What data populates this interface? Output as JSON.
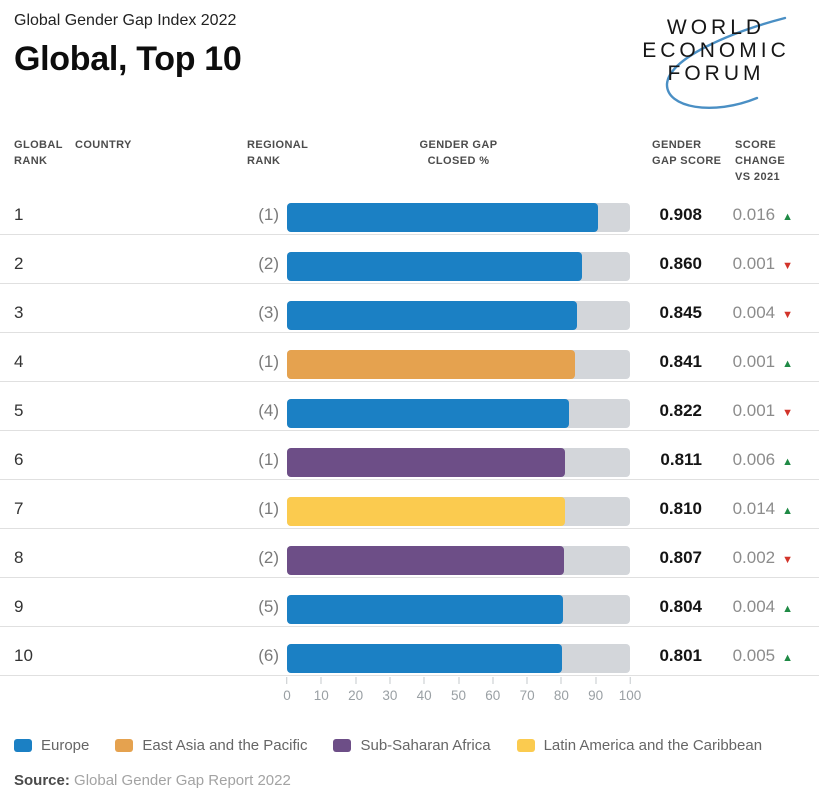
{
  "header": {
    "subtitle": "Global Gender Gap Index 2022",
    "title": "Global, Top 10",
    "logo_lines": [
      "WORLD",
      "ECONOMIC",
      "FORUM"
    ]
  },
  "columns": [
    [
      "GLOBAL",
      "RANK"
    ],
    [
      "COUNTRY"
    ],
    [
      "REGIONAL",
      "RANK"
    ],
    [
      "GENDER GAP",
      "CLOSED %"
    ],
    [
      "GENDER",
      "GAP SCORE"
    ],
    [
      "SCORE",
      "CHANGE",
      "VS 2021"
    ]
  ],
  "chart_data": {
    "type": "bar",
    "orientation": "horizontal",
    "title": "Global, Top 10",
    "xlabel": "GENDER GAP CLOSED %",
    "axis": {
      "min": 0,
      "max": 100,
      "ticks": [
        0,
        10,
        20,
        30,
        40,
        50,
        60,
        70,
        80,
        90,
        100
      ]
    },
    "rows": [
      {
        "global_rank": "1",
        "country": "",
        "regional_rank": "(1)",
        "region": "Europe",
        "gap_closed_pct": 90.8,
        "score": "0.908",
        "change": "0.016",
        "change_dir": "up"
      },
      {
        "global_rank": "2",
        "country": "",
        "regional_rank": "(2)",
        "region": "Europe",
        "gap_closed_pct": 86.0,
        "score": "0.860",
        "change": "0.001",
        "change_dir": "down"
      },
      {
        "global_rank": "3",
        "country": "",
        "regional_rank": "(3)",
        "region": "Europe",
        "gap_closed_pct": 84.5,
        "score": "0.845",
        "change": "0.004",
        "change_dir": "down"
      },
      {
        "global_rank": "4",
        "country": "",
        "regional_rank": "(1)",
        "region": "East Asia and the Pacific",
        "gap_closed_pct": 84.1,
        "score": "0.841",
        "change": "0.001",
        "change_dir": "up"
      },
      {
        "global_rank": "5",
        "country": "",
        "regional_rank": "(4)",
        "region": "Europe",
        "gap_closed_pct": 82.2,
        "score": "0.822",
        "change": "0.001",
        "change_dir": "down"
      },
      {
        "global_rank": "6",
        "country": "",
        "regional_rank": "(1)",
        "region": "Sub-Saharan Africa",
        "gap_closed_pct": 81.1,
        "score": "0.811",
        "change": "0.006",
        "change_dir": "up"
      },
      {
        "global_rank": "7",
        "country": "",
        "regional_rank": "(1)",
        "region": "Latin America and the Caribbean",
        "gap_closed_pct": 81.0,
        "score": "0.810",
        "change": "0.014",
        "change_dir": "up"
      },
      {
        "global_rank": "8",
        "country": "",
        "regional_rank": "(2)",
        "region": "Sub-Saharan Africa",
        "gap_closed_pct": 80.7,
        "score": "0.807",
        "change": "0.002",
        "change_dir": "down"
      },
      {
        "global_rank": "9",
        "country": "",
        "regional_rank": "(5)",
        "region": "Europe",
        "gap_closed_pct": 80.4,
        "score": "0.804",
        "change": "0.004",
        "change_dir": "up"
      },
      {
        "global_rank": "10",
        "country": "",
        "regional_rank": "(6)",
        "region": "Europe",
        "gap_closed_pct": 80.1,
        "score": "0.801",
        "change": "0.005",
        "change_dir": "up"
      }
    ]
  },
  "legend": [
    {
      "label": "Europe",
      "color": "#1b80c4"
    },
    {
      "label": "East Asia and the Pacific",
      "color": "#e5a24f"
    },
    {
      "label": "Sub-Saharan Africa",
      "color": "#6d4e87"
    },
    {
      "label": "Latin America and the Caribbean",
      "color": "#fbcb4f"
    }
  ],
  "icons": {
    "up": "▲",
    "down": "▼"
  },
  "colors": {
    "bar_track": "#d3d6da",
    "change_up": "#1f8a45",
    "change_down": "#d2342a",
    "logo_arc": "#4a8fc4"
  },
  "source": {
    "label": "Source:",
    "text": "Global Gender Gap Report 2022"
  }
}
